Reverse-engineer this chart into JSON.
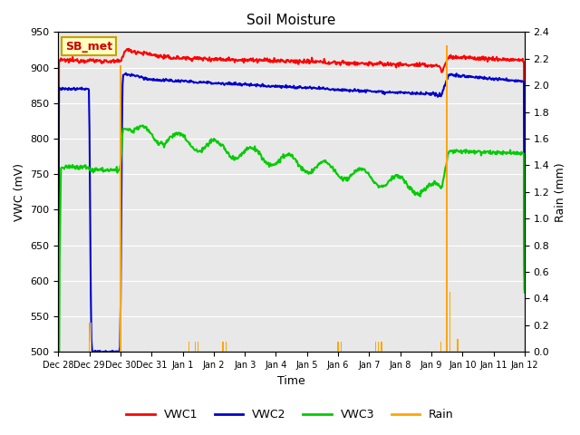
{
  "title": "Soil Moisture",
  "xlabel": "Time",
  "ylabel_left": "VWC (mV)",
  "ylabel_right": "Rain (mm)",
  "ylim_left": [
    500,
    950
  ],
  "ylim_right": [
    0.0,
    2.4
  ],
  "yticks_left": [
    500,
    550,
    600,
    650,
    700,
    750,
    800,
    850,
    900,
    950
  ],
  "yticks_right": [
    0.0,
    0.2,
    0.4,
    0.6,
    0.8,
    1.0,
    1.2,
    1.4,
    1.6,
    1.8,
    2.0,
    2.2,
    2.4
  ],
  "x_labels": [
    "Dec 28",
    "Dec 29",
    "Dec 30",
    "Dec 31",
    "Jan 1",
    "Jan 2",
    "Jan 3",
    "Jan 4",
    "Jan 5",
    "Jan 6",
    "Jan 7",
    "Jan 8",
    "Jan 9",
    "Jan 10",
    "Jan 11",
    "Jan 12"
  ],
  "annotation_text": "SB_met",
  "annotation_bg": "#FFFFC0",
  "annotation_border": "#C8A000",
  "vwc1_color": "#FF0000",
  "vwc2_color": "#0000CC",
  "vwc3_color": "#00CC00",
  "rain_color": "#FFA500",
  "plot_bg_color": "#E8E8E8",
  "fig_bg_color": "#FFFFFF",
  "legend_entries": [
    "VWC1",
    "VWC2",
    "VWC3",
    "Rain"
  ],
  "legend_colors": [
    "#FF0000",
    "#0000CC",
    "#00CC00",
    "#FFA500"
  ],
  "grid_color": "#FFFFFF",
  "n_days": 15
}
